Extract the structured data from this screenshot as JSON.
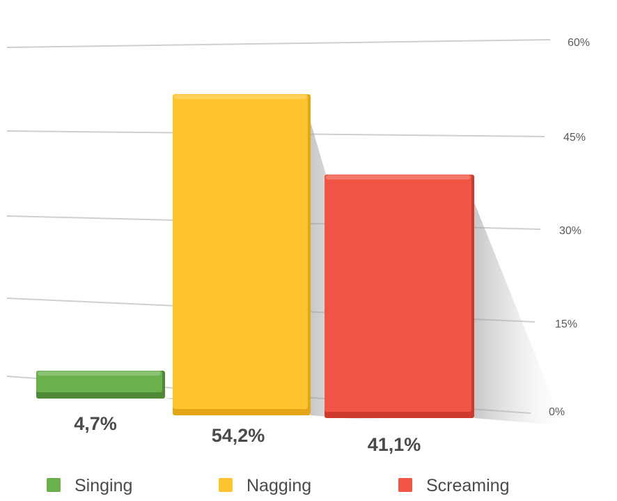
{
  "chart_data": {
    "type": "bar",
    "categories": [
      "Singing",
      "Nagging",
      "Screaming"
    ],
    "values": [
      4.7,
      54.2,
      41.1
    ],
    "value_labels": [
      "4,7%",
      "54,2%",
      "41,1%"
    ],
    "colors": [
      "#6ab04c",
      "#ffc42e",
      "#f05545"
    ],
    "colors_dark": [
      "#4e8a35",
      "#e6a417",
      "#cf3a2e"
    ],
    "ylim": [
      0,
      60
    ],
    "y_ticks": [
      0,
      15,
      30,
      45,
      60
    ],
    "y_tick_labels": [
      "0%",
      "15%",
      "30%",
      "45%",
      "60%"
    ],
    "y_axis_position": "right",
    "grid": true,
    "legend_position": "bottom",
    "legend": [
      "Singing",
      "Nagging",
      "Screaming"
    ],
    "three_d": true
  }
}
